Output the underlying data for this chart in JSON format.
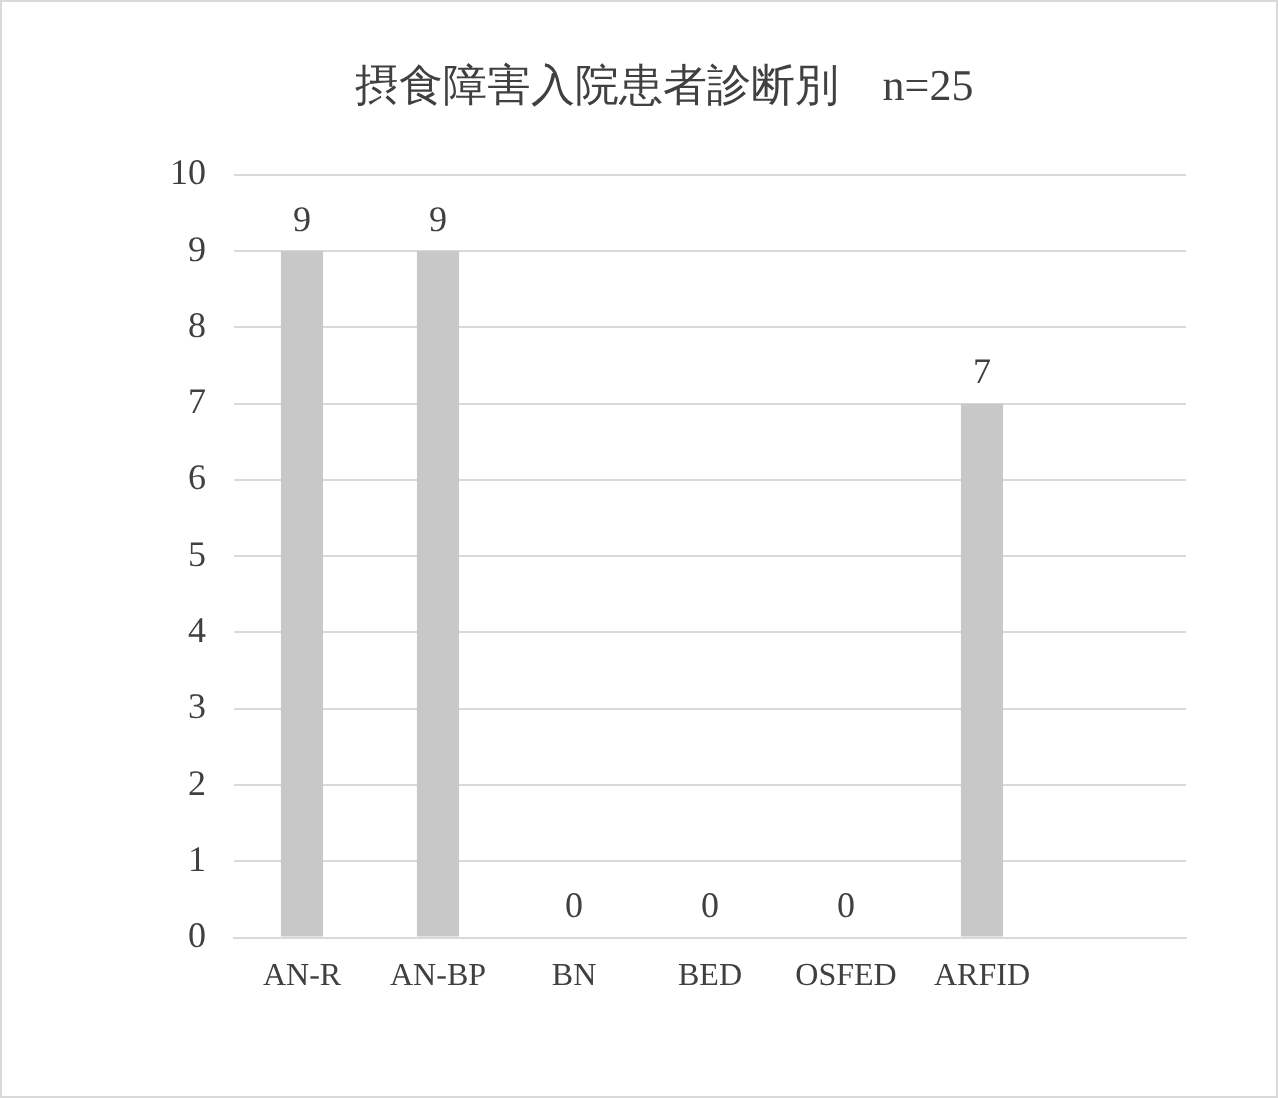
{
  "chart_data": {
    "type": "bar",
    "title": "摂食障害入院患者診断別　n=25",
    "categories": [
      "AN-R",
      "AN-BP",
      "BN",
      "BED",
      "OSFED",
      "ARFID",
      null
    ],
    "values": [
      9,
      9,
      0,
      0,
      0,
      7,
      null
    ],
    "color": "#c8c8c8",
    "ylim": [
      0,
      10
    ],
    "yticks": [
      0,
      1,
      2,
      3,
      4,
      5,
      6,
      7,
      8,
      9,
      10
    ],
    "grid": "y",
    "data_labels": true,
    "legend": false
  }
}
